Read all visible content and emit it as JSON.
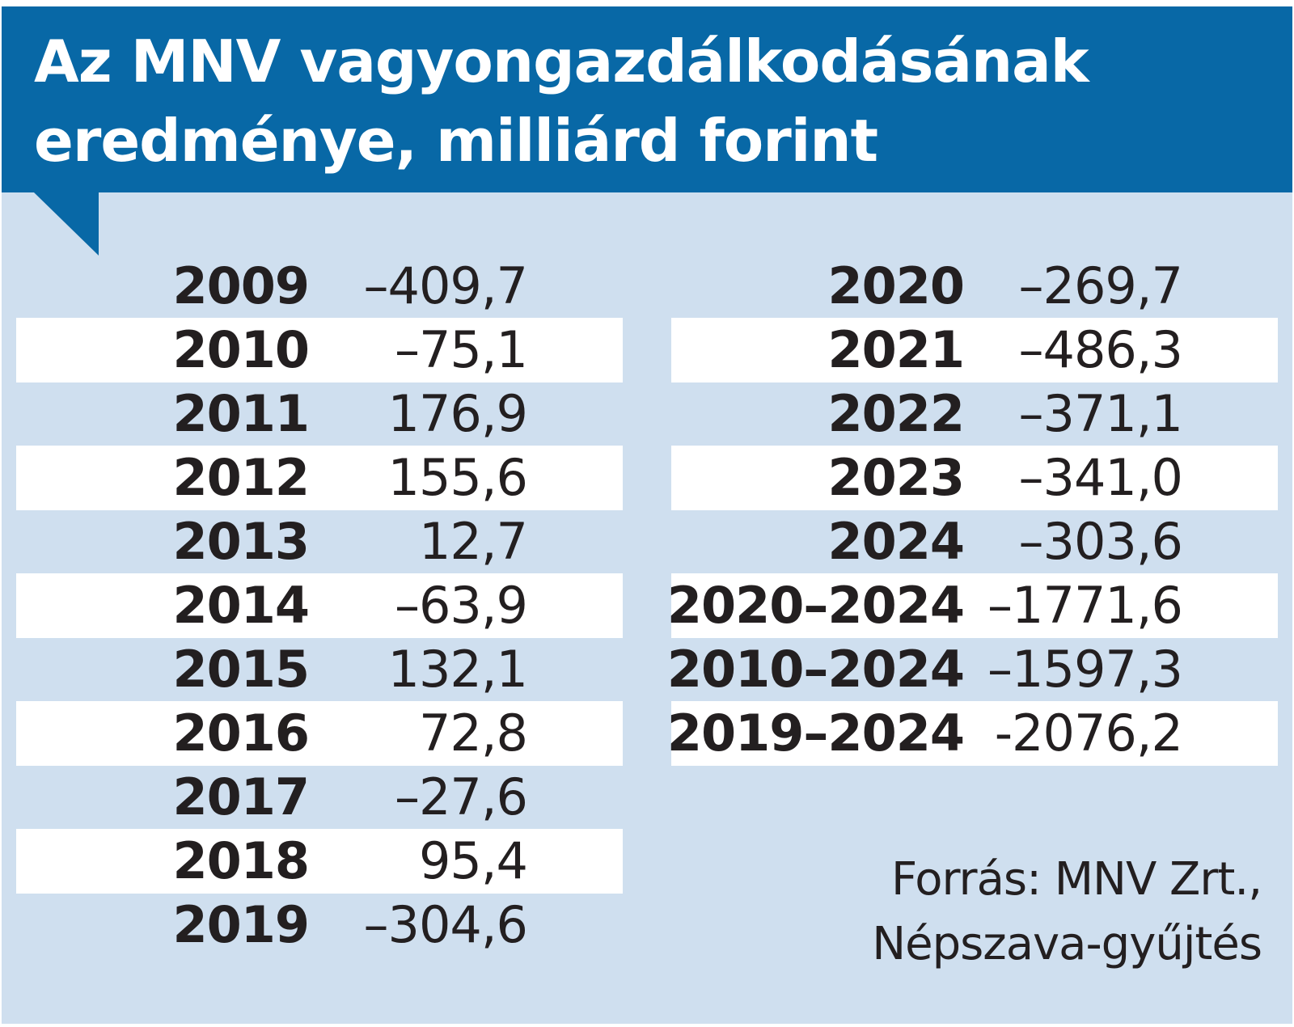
{
  "chart_data": {
    "type": "table",
    "title_line1": "Az MNV vagyongazdálkodásának",
    "title_line2": "eredménye, milliárd forint",
    "left_rows": [
      {
        "label": "2009",
        "value": "–409,7"
      },
      {
        "label": "2010",
        "value": "–75,1"
      },
      {
        "label": "2011",
        "value": "176,9"
      },
      {
        "label": "2012",
        "value": "155,6"
      },
      {
        "label": "2013",
        "value": "12,7"
      },
      {
        "label": "2014",
        "value": "–63,9"
      },
      {
        "label": "2015",
        "value": "132,1"
      },
      {
        "label": "2016",
        "value": "72,8"
      },
      {
        "label": "2017",
        "value": "–27,6"
      },
      {
        "label": "2018",
        "value": "95,4"
      },
      {
        "label": "2019",
        "value": "–304,6"
      }
    ],
    "right_rows": [
      {
        "label": "2020",
        "value": "–269,7"
      },
      {
        "label": "2021",
        "value": "–486,3"
      },
      {
        "label": "2022",
        "value": "–371,1"
      },
      {
        "label": "2023",
        "value": "–341,0"
      },
      {
        "label": "2024",
        "value": "–303,6"
      },
      {
        "label": "2020–2024",
        "value": "–1771,6"
      },
      {
        "label": "2010–2024",
        "value": "–1597,3"
      },
      {
        "label": "2019–2024",
        "value": "-2076,2"
      }
    ],
    "source_line1": "Forrás: MNV Zrt.,",
    "source_line2": "Népszava-gyűjtés"
  },
  "colors": {
    "header_blue": "#0868a6",
    "panel_light_blue": "#cfdfef",
    "stripe_white": "#ffffff",
    "text_dark": "#231f20"
  }
}
